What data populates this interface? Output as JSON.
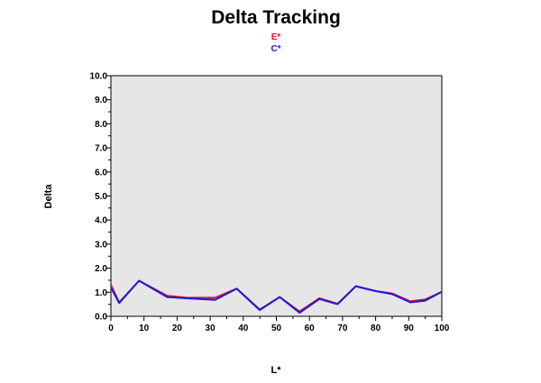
{
  "chart_data": {
    "type": "line",
    "title": "Delta Tracking",
    "xlabel": "L*",
    "ylabel": "Delta",
    "xlim": [
      0,
      100
    ],
    "ylim": [
      0,
      10
    ],
    "xticks": [
      0,
      10,
      20,
      30,
      40,
      50,
      60,
      70,
      80,
      90,
      100
    ],
    "xtick_labels": [
      "0",
      "10",
      "20",
      "30",
      "40",
      "50",
      "60",
      "70",
      "80",
      "90",
      "100"
    ],
    "yticks": [
      0,
      1,
      2,
      3,
      4,
      5,
      6,
      7,
      8,
      9,
      10
    ],
    "ytick_labels": [
      "0.0",
      "1.0",
      "2.0",
      "3.0",
      "4.0",
      "5.0",
      "6.0",
      "7.0",
      "8.0",
      "9.0",
      "10.0"
    ],
    "grid": false,
    "legend_position": "top-center",
    "plot_background": "#e6e6e6",
    "series": [
      {
        "name": "E*",
        "color": "#e8102a",
        "x": [
          0,
          2.5,
          8.5,
          17,
          23,
          31.5,
          38,
          45,
          51,
          57,
          63,
          68.5,
          74,
          80,
          85,
          90.5,
          95,
          100
        ],
        "y": [
          1.3,
          0.58,
          1.48,
          0.85,
          0.77,
          0.77,
          1.15,
          0.28,
          0.8,
          0.2,
          0.75,
          0.52,
          1.25,
          1.05,
          0.95,
          0.62,
          0.7,
          1.02
        ]
      },
      {
        "name": "C*",
        "color": "#1c1cdb",
        "x": [
          0,
          2.5,
          8.5,
          17,
          23,
          31.5,
          38,
          45,
          51,
          57,
          63,
          68.5,
          74,
          80,
          85,
          90.5,
          95,
          100
        ],
        "y": [
          1.2,
          0.55,
          1.48,
          0.8,
          0.75,
          0.68,
          1.15,
          0.26,
          0.8,
          0.15,
          0.72,
          0.5,
          1.25,
          1.05,
          0.92,
          0.58,
          0.65,
          1.02
        ]
      }
    ]
  }
}
